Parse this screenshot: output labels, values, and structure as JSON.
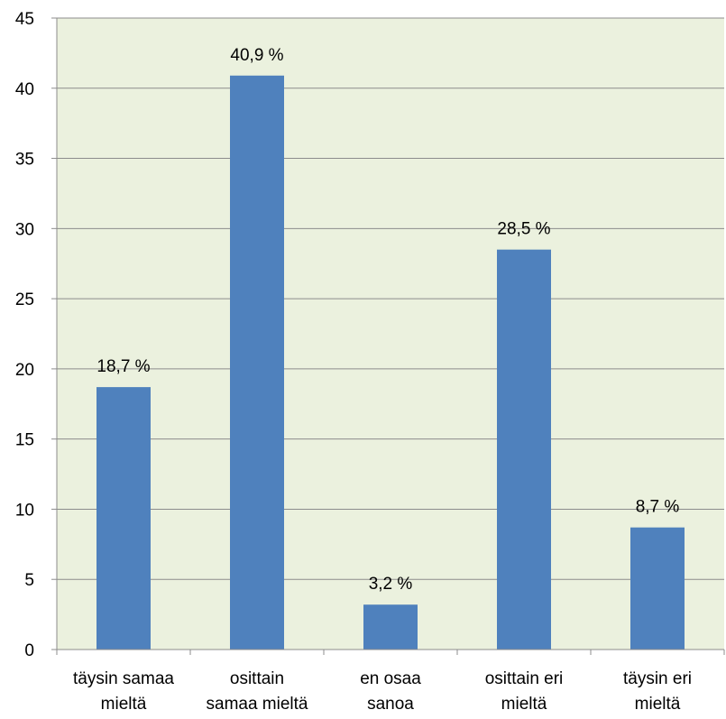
{
  "chart_data": {
    "type": "bar",
    "title": "",
    "xlabel": "",
    "ylabel": "",
    "ylim": [
      0,
      45
    ],
    "yticks": [
      0,
      5,
      10,
      15,
      20,
      25,
      30,
      35,
      40,
      45
    ],
    "grid": true,
    "legend": "none",
    "categories": [
      [
        "täysin samaa",
        "mieltä"
      ],
      [
        "osittain",
        "samaa mieltä"
      ],
      [
        "en osaa",
        "sanoa"
      ],
      [
        "osittain eri",
        "mieltä"
      ],
      [
        "täysin eri",
        "mieltä"
      ]
    ],
    "values": [
      18.7,
      40.9,
      3.2,
      28.5,
      8.7
    ],
    "data_labels": [
      "18,7 %",
      "40,9 %",
      "3,2 %",
      "28,5 %",
      "8,7 %"
    ],
    "colors": {
      "bar": "#4f81bd",
      "plot_background": "#ebf1de",
      "gridline": "#8c8c8c",
      "axis": "#8c8c8c"
    }
  }
}
